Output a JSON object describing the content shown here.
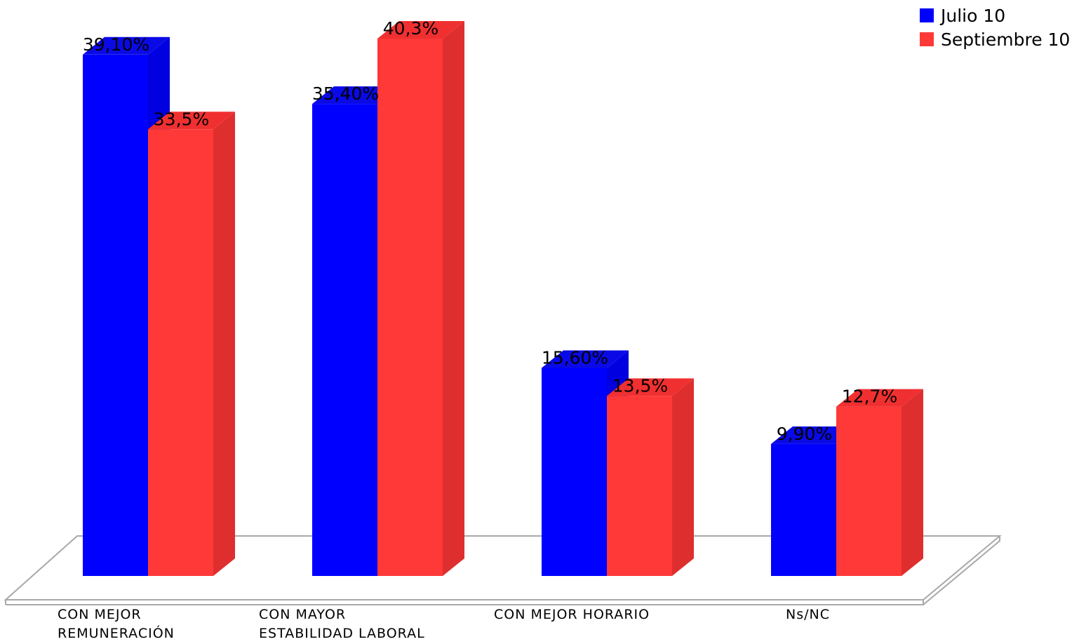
{
  "chart_data": {
    "type": "bar",
    "variant": "3d-clustered-column",
    "title": "",
    "xlabel": "",
    "ylabel": "",
    "categories": [
      [
        "CON MEJOR",
        "REMUNERACIÓN"
      ],
      [
        "CON MAYOR",
        "ESTABILIDAD LABORAL"
      ],
      [
        "CON MEJOR HORARIO"
      ],
      [
        "Ns/NC"
      ]
    ],
    "series": [
      {
        "name": "Julio 10",
        "color": "#0000ff",
        "side_color": "#0000e0",
        "top_color": "#0a0ae6",
        "values": [
          39.1,
          35.4,
          15.6,
          9.9
        ],
        "labels": [
          "39,10%",
          "35,40%",
          "15,60%",
          "9,90%"
        ]
      },
      {
        "name": "Septiembre 10",
        "color": "#ff3838",
        "side_color": "#df2e2e",
        "top_color": "#f03030",
        "values": [
          33.5,
          40.3,
          13.5,
          12.7
        ],
        "labels": [
          "33,5%",
          "40,3%",
          "13,5%",
          "12,7%"
        ]
      }
    ],
    "ylim": [
      0,
      42
    ],
    "grid": false,
    "legend_position": "top-right",
    "floor_color": "#a8a8a8"
  }
}
